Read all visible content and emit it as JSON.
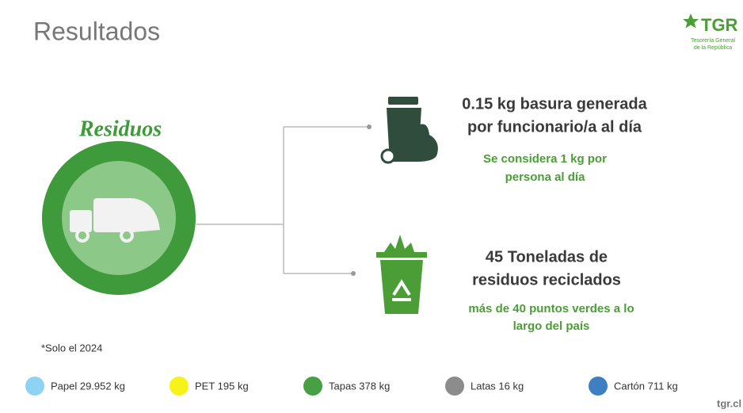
{
  "header": {
    "title": "Resultados"
  },
  "logo": {
    "brand": "TGR",
    "lines": [
      "Tesorería General",
      "de la República"
    ]
  },
  "circle": {
    "label": "Residuos"
  },
  "stats": [
    {
      "headline": [
        "0.15 kg basura generada",
        "por funcionario/a al día"
      ],
      "note": [
        "Se considera 1 kg por",
        "persona al día"
      ]
    },
    {
      "headline": [
        "45 Toneladas de",
        "residuos reciclados"
      ],
      "note": [
        "más de 40 puntos verdes a lo",
        "largo del país"
      ]
    }
  ],
  "footnote": "*Solo el 2024",
  "legend": [
    {
      "label": "Papel 29.952 kg",
      "color": "#8fd3f4"
    },
    {
      "label": "PET 195 kg",
      "color": "#f7f21a"
    },
    {
      "label": "Tapas 378 kg",
      "color": "#47a043"
    },
    {
      "label": "Latas 16 kg",
      "color": "#8c8c8c"
    },
    {
      "label": "Cartón 711 kg",
      "color": "#3d7fc1"
    }
  ],
  "footer": "tgr.cl"
}
